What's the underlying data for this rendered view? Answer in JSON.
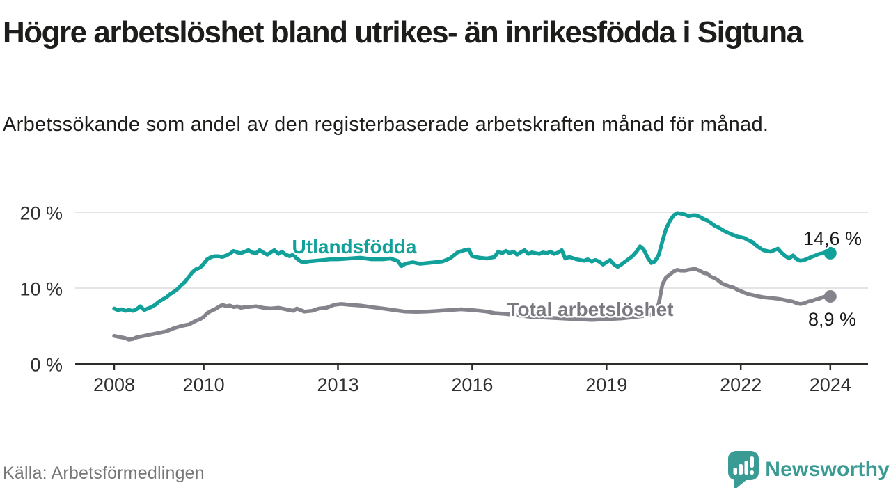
{
  "header": {
    "title": "Högre arbetslöshet bland utrikes- än inrikesfödda i Sigtuna",
    "subtitle": "Arbetssökande som andel av den registerbaserade arbetskraften månad för månad."
  },
  "footer": {
    "source": "Källa: Arbetsförmedlingen",
    "brand_name": "Newsworthy",
    "brand_icon": "speech-bubble-bar-chart-icon",
    "brand_color": "#3a9b94"
  },
  "colors": {
    "background": "#ffffff",
    "axis": "#2b2b28",
    "grid": "#dcdcdc",
    "tick_text": "#2f2f2f",
    "value_text": "#1a1a1a"
  },
  "chart_data": {
    "type": "line",
    "title": "Högre arbetslöshet bland utrikes- än inrikesfödda i Sigtuna",
    "xlabel": "",
    "ylabel": "Arbetssökande som andel av den registerbaserade arbetskraften",
    "ylim": [
      0,
      21.5
    ],
    "xlim": [
      2007.9,
      2024.9
    ],
    "grid": "horizontal",
    "legend_position": "inline-labels",
    "y_ticks": [
      {
        "label": "0 %",
        "value": 0
      },
      {
        "label": "10 %",
        "value": 10
      },
      {
        "label": "20 %",
        "value": 20
      }
    ],
    "x_ticks": [
      {
        "label": "2008",
        "year": 2008
      },
      {
        "label": "2010",
        "year": 2010
      },
      {
        "label": "2013",
        "year": 2013
      },
      {
        "label": "2016",
        "year": 2016
      },
      {
        "label": "2019",
        "year": 2019
      },
      {
        "label": "2022",
        "year": 2022
      },
      {
        "label": "2024",
        "year": 2024
      }
    ],
    "series": [
      {
        "name": "Utlandsfödda",
        "color": "#12a19a",
        "end_label": "14,6 %",
        "end_value": 14.6,
        "points": [
          [
            2008.0,
            7.3
          ],
          [
            2008.08,
            7.1
          ],
          [
            2008.17,
            7.2
          ],
          [
            2008.25,
            7.0
          ],
          [
            2008.33,
            7.1
          ],
          [
            2008.42,
            7.0
          ],
          [
            2008.5,
            7.2
          ],
          [
            2008.58,
            7.6
          ],
          [
            2008.67,
            7.1
          ],
          [
            2008.75,
            7.3
          ],
          [
            2008.83,
            7.5
          ],
          [
            2008.92,
            7.8
          ],
          [
            2009.0,
            8.2
          ],
          [
            2009.08,
            8.5
          ],
          [
            2009.17,
            8.8
          ],
          [
            2009.25,
            9.2
          ],
          [
            2009.33,
            9.5
          ],
          [
            2009.42,
            9.9
          ],
          [
            2009.5,
            10.4
          ],
          [
            2009.58,
            10.8
          ],
          [
            2009.67,
            11.5
          ],
          [
            2009.75,
            12.1
          ],
          [
            2009.83,
            12.5
          ],
          [
            2009.92,
            12.7
          ],
          [
            2010.0,
            13.2
          ],
          [
            2010.08,
            13.8
          ],
          [
            2010.17,
            14.1
          ],
          [
            2010.25,
            14.2
          ],
          [
            2010.33,
            14.2
          ],
          [
            2010.42,
            14.1
          ],
          [
            2010.5,
            14.3
          ],
          [
            2010.58,
            14.5
          ],
          [
            2010.67,
            14.9
          ],
          [
            2010.75,
            14.7
          ],
          [
            2010.83,
            14.6
          ],
          [
            2010.92,
            14.8
          ],
          [
            2011.0,
            15.0
          ],
          [
            2011.08,
            14.7
          ],
          [
            2011.17,
            14.6
          ],
          [
            2011.25,
            15.0
          ],
          [
            2011.33,
            14.7
          ],
          [
            2011.42,
            14.4
          ],
          [
            2011.5,
            14.7
          ],
          [
            2011.58,
            15.0
          ],
          [
            2011.67,
            14.5
          ],
          [
            2011.75,
            14.8
          ],
          [
            2011.83,
            14.4
          ],
          [
            2011.92,
            14.2
          ],
          [
            2012.0,
            14.4
          ],
          [
            2012.08,
            13.9
          ],
          [
            2012.17,
            13.5
          ],
          [
            2012.25,
            13.4
          ],
          [
            2012.33,
            13.5
          ],
          [
            2012.5,
            13.6
          ],
          [
            2012.67,
            13.7
          ],
          [
            2012.83,
            13.8
          ],
          [
            2013.0,
            13.8
          ],
          [
            2013.25,
            13.9
          ],
          [
            2013.5,
            14.0
          ],
          [
            2013.75,
            13.8
          ],
          [
            2014.0,
            13.8
          ],
          [
            2014.17,
            13.9
          ],
          [
            2014.33,
            13.6
          ],
          [
            2014.42,
            12.9
          ],
          [
            2014.5,
            13.2
          ],
          [
            2014.67,
            13.4
          ],
          [
            2014.83,
            13.2
          ],
          [
            2015.0,
            13.3
          ],
          [
            2015.17,
            13.4
          ],
          [
            2015.33,
            13.5
          ],
          [
            2015.5,
            13.9
          ],
          [
            2015.67,
            14.7
          ],
          [
            2015.83,
            15.0
          ],
          [
            2015.92,
            15.1
          ],
          [
            2016.0,
            14.2
          ],
          [
            2016.17,
            14.0
          ],
          [
            2016.33,
            13.9
          ],
          [
            2016.5,
            14.1
          ],
          [
            2016.58,
            14.8
          ],
          [
            2016.67,
            14.6
          ],
          [
            2016.75,
            14.9
          ],
          [
            2016.83,
            14.6
          ],
          [
            2016.92,
            14.8
          ],
          [
            2017.0,
            14.4
          ],
          [
            2017.08,
            14.7
          ],
          [
            2017.17,
            15.0
          ],
          [
            2017.25,
            14.5
          ],
          [
            2017.33,
            14.7
          ],
          [
            2017.5,
            14.5
          ],
          [
            2017.58,
            14.7
          ],
          [
            2017.67,
            14.6
          ],
          [
            2017.75,
            14.8
          ],
          [
            2017.83,
            14.5
          ],
          [
            2017.92,
            14.7
          ],
          [
            2018.0,
            15.0
          ],
          [
            2018.08,
            13.9
          ],
          [
            2018.17,
            14.1
          ],
          [
            2018.33,
            13.8
          ],
          [
            2018.5,
            13.6
          ],
          [
            2018.58,
            13.8
          ],
          [
            2018.67,
            13.5
          ],
          [
            2018.75,
            13.7
          ],
          [
            2018.83,
            13.5
          ],
          [
            2018.92,
            13.1
          ],
          [
            2019.0,
            13.4
          ],
          [
            2019.08,
            13.7
          ],
          [
            2019.17,
            13.1
          ],
          [
            2019.25,
            12.8
          ],
          [
            2019.33,
            13.1
          ],
          [
            2019.42,
            13.5
          ],
          [
            2019.58,
            14.2
          ],
          [
            2019.67,
            14.8
          ],
          [
            2019.75,
            15.5
          ],
          [
            2019.83,
            15.1
          ],
          [
            2019.92,
            14.0
          ],
          [
            2020.0,
            13.3
          ],
          [
            2020.08,
            13.5
          ],
          [
            2020.17,
            14.4
          ],
          [
            2020.25,
            16.2
          ],
          [
            2020.33,
            17.8
          ],
          [
            2020.42,
            18.9
          ],
          [
            2020.5,
            19.6
          ],
          [
            2020.58,
            19.9
          ],
          [
            2020.67,
            19.8
          ],
          [
            2020.75,
            19.7
          ],
          [
            2020.83,
            19.5
          ],
          [
            2020.92,
            19.6
          ],
          [
            2021.0,
            19.6
          ],
          [
            2021.08,
            19.4
          ],
          [
            2021.17,
            19.1
          ],
          [
            2021.25,
            18.9
          ],
          [
            2021.33,
            18.6
          ],
          [
            2021.42,
            18.2
          ],
          [
            2021.5,
            18.0
          ],
          [
            2021.58,
            17.7
          ],
          [
            2021.67,
            17.4
          ],
          [
            2021.75,
            17.2
          ],
          [
            2021.83,
            17.0
          ],
          [
            2021.92,
            16.8
          ],
          [
            2022.0,
            16.7
          ],
          [
            2022.08,
            16.6
          ],
          [
            2022.17,
            16.3
          ],
          [
            2022.25,
            16.1
          ],
          [
            2022.33,
            15.7
          ],
          [
            2022.42,
            15.3
          ],
          [
            2022.5,
            15.0
          ],
          [
            2022.58,
            14.9
          ],
          [
            2022.67,
            14.8
          ],
          [
            2022.75,
            15.0
          ],
          [
            2022.83,
            15.2
          ],
          [
            2022.92,
            14.6
          ],
          [
            2023.0,
            14.2
          ],
          [
            2023.08,
            13.9
          ],
          [
            2023.17,
            14.3
          ],
          [
            2023.25,
            13.8
          ],
          [
            2023.33,
            13.6
          ],
          [
            2023.42,
            13.7
          ],
          [
            2023.5,
            13.9
          ],
          [
            2023.58,
            14.1
          ],
          [
            2023.67,
            14.3
          ],
          [
            2023.75,
            14.5
          ],
          [
            2023.83,
            14.6
          ],
          [
            2023.92,
            14.8
          ],
          [
            2024.0,
            14.6
          ]
        ]
      },
      {
        "name": "Total arbetslöshet",
        "color": "#85838c",
        "label_color": "#7b7980",
        "end_label": "8,9 %",
        "end_value": 8.9,
        "points": [
          [
            2008.0,
            3.7
          ],
          [
            2008.08,
            3.6
          ],
          [
            2008.17,
            3.5
          ],
          [
            2008.25,
            3.4
          ],
          [
            2008.33,
            3.2
          ],
          [
            2008.42,
            3.3
          ],
          [
            2008.5,
            3.5
          ],
          [
            2008.58,
            3.6
          ],
          [
            2008.67,
            3.7
          ],
          [
            2008.75,
            3.8
          ],
          [
            2008.83,
            3.9
          ],
          [
            2008.92,
            4.0
          ],
          [
            2009.0,
            4.1
          ],
          [
            2009.17,
            4.3
          ],
          [
            2009.33,
            4.7
          ],
          [
            2009.5,
            5.0
          ],
          [
            2009.67,
            5.2
          ],
          [
            2009.83,
            5.7
          ],
          [
            2009.92,
            5.9
          ],
          [
            2010.0,
            6.2
          ],
          [
            2010.08,
            6.7
          ],
          [
            2010.17,
            7.0
          ],
          [
            2010.25,
            7.2
          ],
          [
            2010.33,
            7.5
          ],
          [
            2010.42,
            7.8
          ],
          [
            2010.5,
            7.6
          ],
          [
            2010.58,
            7.7
          ],
          [
            2010.67,
            7.5
          ],
          [
            2010.75,
            7.6
          ],
          [
            2010.83,
            7.4
          ],
          [
            2010.92,
            7.5
          ],
          [
            2011.0,
            7.5
          ],
          [
            2011.17,
            7.6
          ],
          [
            2011.33,
            7.4
          ],
          [
            2011.5,
            7.3
          ],
          [
            2011.67,
            7.4
          ],
          [
            2011.83,
            7.2
          ],
          [
            2012.0,
            7.0
          ],
          [
            2012.08,
            7.3
          ],
          [
            2012.25,
            6.9
          ],
          [
            2012.42,
            7.0
          ],
          [
            2012.58,
            7.3
          ],
          [
            2012.75,
            7.4
          ],
          [
            2012.92,
            7.8
          ],
          [
            2013.08,
            7.9
          ],
          [
            2013.25,
            7.8
          ],
          [
            2013.5,
            7.7
          ],
          [
            2013.75,
            7.5
          ],
          [
            2014.0,
            7.3
          ],
          [
            2014.25,
            7.1
          ],
          [
            2014.5,
            6.9
          ],
          [
            2014.75,
            6.85
          ],
          [
            2015.0,
            6.9
          ],
          [
            2015.25,
            7.0
          ],
          [
            2015.5,
            7.1
          ],
          [
            2015.75,
            7.2
          ],
          [
            2016.0,
            7.1
          ],
          [
            2016.17,
            7.0
          ],
          [
            2016.33,
            6.9
          ],
          [
            2016.5,
            6.7
          ],
          [
            2016.75,
            6.6
          ],
          [
            2017.0,
            6.4
          ],
          [
            2017.33,
            6.2
          ],
          [
            2017.67,
            6.1
          ],
          [
            2018.0,
            6.0
          ],
          [
            2018.33,
            5.9
          ],
          [
            2018.67,
            5.8
          ],
          [
            2019.0,
            5.9
          ],
          [
            2019.33,
            6.0
          ],
          [
            2019.67,
            6.2
          ],
          [
            2019.92,
            6.4
          ],
          [
            2020.0,
            6.5
          ],
          [
            2020.08,
            6.6
          ],
          [
            2020.17,
            8.0
          ],
          [
            2020.25,
            10.5
          ],
          [
            2020.33,
            11.4
          ],
          [
            2020.42,
            11.8
          ],
          [
            2020.5,
            12.2
          ],
          [
            2020.58,
            12.4
          ],
          [
            2020.67,
            12.3
          ],
          [
            2020.75,
            12.3
          ],
          [
            2020.83,
            12.4
          ],
          [
            2020.92,
            12.5
          ],
          [
            2021.0,
            12.5
          ],
          [
            2021.08,
            12.3
          ],
          [
            2021.17,
            12.0
          ],
          [
            2021.25,
            11.9
          ],
          [
            2021.33,
            11.5
          ],
          [
            2021.42,
            11.3
          ],
          [
            2021.5,
            11.0
          ],
          [
            2021.58,
            10.6
          ],
          [
            2021.67,
            10.4
          ],
          [
            2021.75,
            10.2
          ],
          [
            2021.83,
            10.1
          ],
          [
            2021.92,
            9.8
          ],
          [
            2022.0,
            9.6
          ],
          [
            2022.08,
            9.4
          ],
          [
            2022.17,
            9.2
          ],
          [
            2022.25,
            9.1
          ],
          [
            2022.33,
            9.0
          ],
          [
            2022.5,
            8.8
          ],
          [
            2022.67,
            8.7
          ],
          [
            2022.83,
            8.6
          ],
          [
            2022.92,
            8.5
          ],
          [
            2023.0,
            8.4
          ],
          [
            2023.08,
            8.3
          ],
          [
            2023.17,
            8.2
          ],
          [
            2023.25,
            8.0
          ],
          [
            2023.33,
            7.9
          ],
          [
            2023.42,
            8.0
          ],
          [
            2023.5,
            8.2
          ],
          [
            2023.58,
            8.3
          ],
          [
            2023.67,
            8.5
          ],
          [
            2023.75,
            8.6
          ],
          [
            2023.83,
            8.8
          ],
          [
            2023.92,
            8.9
          ],
          [
            2024.0,
            8.9
          ]
        ]
      }
    ]
  }
}
